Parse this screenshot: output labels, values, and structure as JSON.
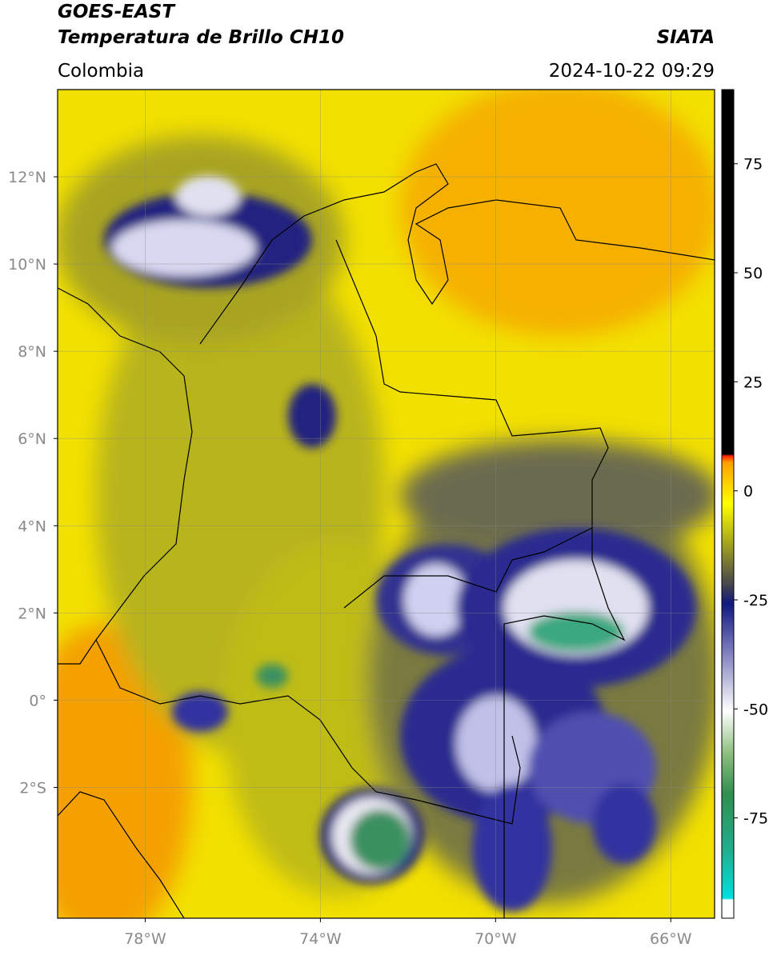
{
  "map": {
    "title": "GOES-EAST",
    "subtitle": "Temperatura de Brillo CH10",
    "source": "SIATA",
    "region": "Colombia",
    "datetime": "2024-10-22 09:29",
    "lonlim": [
      -80,
      -65
    ],
    "latlim": [
      -5,
      14
    ],
    "xticks": [
      {
        "value": -78,
        "label": "78°W"
      },
      {
        "value": -74,
        "label": "74°W"
      },
      {
        "value": -70,
        "label": "70°W"
      },
      {
        "value": -66,
        "label": "66°W"
      }
    ],
    "yticks": [
      {
        "value": 12,
        "label": "12°N"
      },
      {
        "value": 10,
        "label": "10°N"
      },
      {
        "value": 8,
        "label": "8°N"
      },
      {
        "value": 6,
        "label": "6°N"
      },
      {
        "value": 4,
        "label": "4°N"
      },
      {
        "value": 2,
        "label": "2°N"
      },
      {
        "value": 0,
        "label": "0°"
      },
      {
        "value": -2,
        "label": "2°S"
      }
    ],
    "colorbar": {
      "lim": [
        -98,
        92
      ],
      "ticks": [
        75,
        50,
        25,
        0,
        -25,
        -50,
        -75
      ]
    }
  }
}
